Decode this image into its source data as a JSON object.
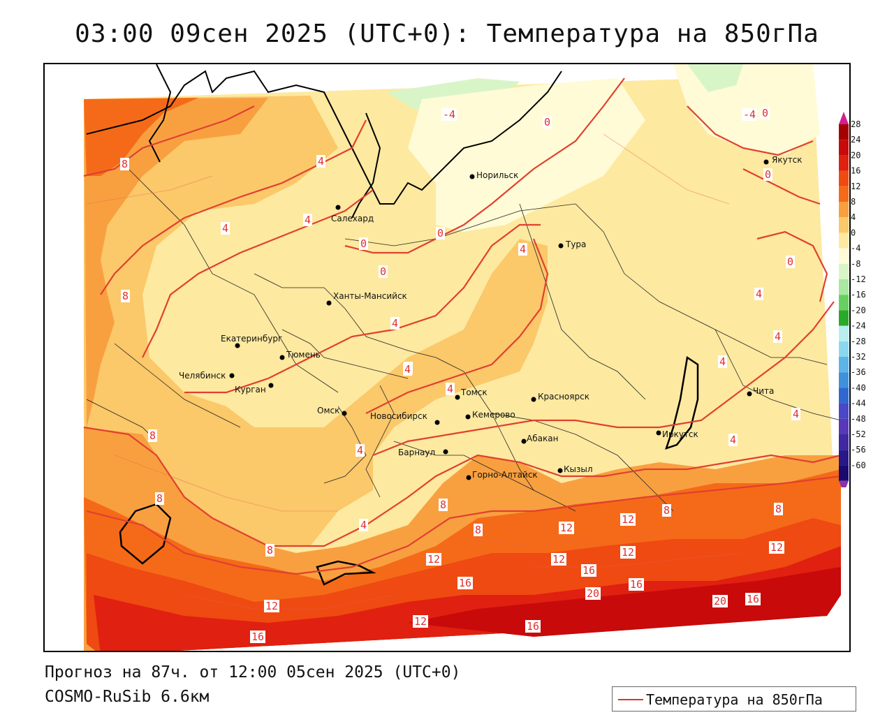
{
  "header": {
    "title": "03:00 09сен 2025 (UTC+0): Температура на 850гПа"
  },
  "footer": {
    "forecast": "Прогноз на 87ч. от 12:00 05сен 2025 (UTC+0)",
    "model": "COSMO-RuSib 6.6км"
  },
  "legend": {
    "label": "Температура на 850гПа",
    "line_color": "#e03030"
  },
  "colorbar": {
    "ticks": [
      "28",
      "24",
      "20",
      "16",
      "12",
      "8",
      "4",
      "0",
      "-4",
      "-8",
      "-12",
      "-16",
      "-20",
      "-24",
      "-28",
      "-32",
      "-36",
      "-40",
      "-44",
      "-48",
      "-52",
      "-56",
      "-60"
    ],
    "colors": [
      "#a50000",
      "#c80a0a",
      "#e02010",
      "#ee4a12",
      "#f56a18",
      "#f8a040",
      "#fbc86a",
      "#fde9a0",
      "#fffbd6",
      "#d8f5c8",
      "#a8e8a0",
      "#68d060",
      "#2aa82a",
      "#b8eef0",
      "#8ad8ee",
      "#5cb4e8",
      "#4090dc",
      "#3068d0",
      "#4848c8",
      "#5838b8",
      "#4028a0",
      "#281888",
      "#1a0a70"
    ],
    "top_arrow_color": "#d02090",
    "bottom_arrow_color": "#8a30b0"
  },
  "cities": [
    {
      "name": "Якутск"
    },
    {
      "name": "Норильск"
    },
    {
      "name": "Салехард"
    },
    {
      "name": "Тура"
    },
    {
      "name": "Ханты-Мансийск"
    },
    {
      "name": "Екатеринбург"
    },
    {
      "name": "Тюмень"
    },
    {
      "name": "Челябинск"
    },
    {
      "name": "Курган"
    },
    {
      "name": "Омск"
    },
    {
      "name": "Томск"
    },
    {
      "name": "Красноярск"
    },
    {
      "name": "Новосибирск"
    },
    {
      "name": "Кемерово"
    },
    {
      "name": "Абакан"
    },
    {
      "name": "Барнаул"
    },
    {
      "name": "Горно-Алтайск"
    },
    {
      "name": "Кызыл"
    },
    {
      "name": "Иркутск"
    },
    {
      "name": "Чита"
    }
  ],
  "isotherm_labels": [
    "8",
    "4",
    "4",
    "4",
    "0",
    "0",
    "0",
    "-4",
    "0",
    "-4",
    "0",
    "0",
    "0",
    "4",
    "4",
    "8",
    "8",
    "8",
    "8",
    "4",
    "4",
    "4",
    "4",
    "4",
    "4",
    "4",
    "4",
    "4",
    "4",
    "8",
    "8",
    "8",
    "8",
    "12",
    "12",
    "12",
    "12",
    "12",
    "12",
    "12",
    "12",
    "16",
    "16",
    "16",
    "16",
    "16",
    "20",
    "20",
    "16"
  ]
}
